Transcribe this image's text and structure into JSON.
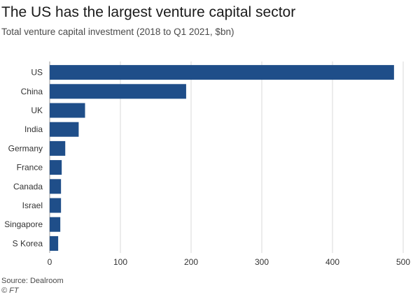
{
  "chart_data": {
    "type": "bar",
    "orientation": "horizontal",
    "title": "The US has the largest venture capital sector",
    "subtitle": "Total venture capital investment (2018 to Q1 2021, $bn)",
    "categories": [
      "US",
      "China",
      "UK",
      "India",
      "Germany",
      "France",
      "Canada",
      "Israel",
      "Singapore",
      "S Korea"
    ],
    "values": [
      487,
      193,
      50,
      41,
      22,
      17,
      16,
      16,
      15,
      12
    ],
    "xlim": [
      0,
      500
    ],
    "xticks": [
      0,
      100,
      200,
      300,
      400,
      500
    ],
    "xlabel": "",
    "ylabel": "",
    "grid": true,
    "bar_color": "#1f4e89"
  },
  "footer": {
    "source": "Source: Dealroom",
    "credit": "© FT"
  }
}
